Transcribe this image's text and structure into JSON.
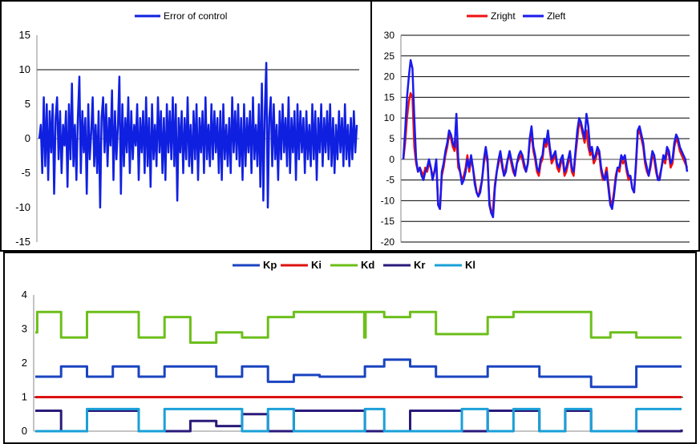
{
  "chart_data": [
    {
      "type": "line",
      "legend": [
        "Error of control"
      ],
      "legend_position": "top",
      "ylim": [
        -15,
        15
      ],
      "yticks": [
        "15",
        "10",
        "5",
        "0",
        "-5",
        "-10",
        "-15"
      ],
      "grid": "horizontal at 10",
      "colors": [
        "#1020e0"
      ],
      "series": [
        {
          "name": "Error of control",
          "values": [
            0,
            2,
            -5,
            6,
            -4,
            5,
            -6,
            4,
            -2,
            5,
            -8,
            3,
            6,
            -3,
            4,
            -5,
            2,
            -1,
            4,
            -7,
            5,
            -3,
            8,
            -4,
            2,
            -6,
            3,
            9,
            -5,
            4,
            -2,
            3,
            -8,
            5,
            -3,
            1,
            6,
            -4,
            2,
            -5,
            4,
            -10,
            3,
            6,
            -2,
            5,
            -4,
            3,
            -1,
            7,
            -6,
            4,
            -3,
            2,
            9,
            -8,
            5,
            -4,
            3,
            -2,
            6,
            -5,
            4,
            -3,
            2,
            -1,
            5,
            -6,
            3,
            -2,
            4,
            -5,
            6,
            -4,
            3,
            -7,
            5,
            -3,
            2,
            -4,
            6,
            -2,
            4,
            -5,
            3,
            -6,
            5,
            -2,
            4,
            -3,
            6,
            -4,
            5,
            -9,
            3,
            -2,
            4,
            -5,
            3,
            -3,
            6,
            -4,
            2,
            -5,
            4,
            -3,
            5,
            -6,
            3,
            -2,
            4,
            -5,
            6,
            -3,
            2,
            -4,
            5,
            -3,
            4,
            -2,
            3,
            -5,
            4,
            -6,
            5,
            -3,
            2,
            -4,
            3,
            -5,
            6,
            -2,
            4,
            -3,
            5,
            -4,
            3,
            -6,
            5,
            -4,
            3,
            -2,
            4,
            -5,
            6,
            -3,
            2,
            -4,
            5,
            -7,
            8,
            -9,
            4,
            11,
            -10,
            3,
            6,
            -4,
            5,
            -3,
            2,
            -6,
            4,
            -3,
            5,
            -2,
            3,
            -4,
            6,
            -5,
            3,
            -2,
            4,
            -6,
            5,
            -3,
            4,
            -2,
            3,
            -5,
            4,
            -3,
            2,
            -4,
            5,
            -3,
            4,
            -6,
            3,
            -2,
            5,
            -4,
            3,
            -2,
            4,
            -3,
            5,
            -4,
            3,
            -5,
            2,
            -3,
            4,
            -2,
            3,
            -4,
            5,
            -3,
            2,
            -4,
            3,
            -3,
            4,
            -2,
            2
          ]
        }
      ]
    },
    {
      "type": "line",
      "legend": [
        "Zright",
        "Zleft"
      ],
      "legend_position": "top",
      "ylim": [
        -20,
        30
      ],
      "yticks": [
        "30",
        "25",
        "20",
        "15",
        "10",
        "5",
        "0",
        "-5",
        "-10",
        "-15",
        "-20"
      ],
      "grid": "horizontal",
      "colors": [
        "#ee1111",
        "#1a1aee"
      ],
      "series": [
        {
          "name": "Zright",
          "values": [
            0,
            4,
            10,
            14,
            16,
            15,
            3,
            -1,
            -3,
            -2,
            -3,
            -4,
            -2,
            -3,
            -1,
            -2,
            -4,
            -3,
            -1,
            -11,
            -12,
            -4,
            -2,
            1,
            3,
            6,
            5,
            3,
            2,
            5,
            -2,
            -3,
            -5,
            -4,
            -2,
            1,
            -3,
            0,
            -2,
            -5,
            -8,
            -9,
            -7,
            -5,
            -1,
            2,
            -1,
            -10,
            -13,
            -12,
            -6,
            -3,
            -1,
            1,
            -2,
            -4,
            -2,
            0,
            1,
            -1,
            -3,
            -4,
            -1,
            0,
            1,
            0,
            -2,
            -3,
            -1,
            4,
            6,
            2,
            0,
            -3,
            -4,
            -1,
            0,
            4,
            3,
            5,
            2,
            -1,
            0,
            1,
            -2,
            -3,
            -1,
            0,
            -4,
            -3,
            -1,
            1,
            -3,
            -4,
            1,
            5,
            9,
            8,
            6,
            4,
            7,
            3,
            1,
            2,
            -1,
            0,
            2,
            1,
            -3,
            -5,
            -4,
            -2,
            -6,
            -10,
            -11,
            -8,
            -4,
            -2,
            -3,
            0,
            -1,
            0,
            -3,
            -5,
            -4,
            -7,
            -8,
            -2,
            6,
            7,
            5,
            3,
            -1,
            -3,
            -4,
            -2,
            1,
            0,
            -3,
            -5,
            -4,
            -2,
            0,
            -1,
            2,
            1,
            -2,
            -1,
            3,
            5,
            4,
            2,
            1,
            0,
            -1,
            -2
          ]
        },
        {
          "name": "Zleft",
          "values": [
            0,
            7,
            15,
            20,
            24,
            22,
            10,
            0,
            -3,
            -2,
            -4,
            -5,
            -3,
            -2,
            0,
            -2,
            -5,
            -3,
            0,
            -11,
            -12,
            -3,
            -1,
            2,
            4,
            7,
            6,
            4,
            3,
            11,
            0,
            -3,
            -6,
            -5,
            -3,
            0,
            -2,
            1,
            -2,
            -6,
            -8,
            -9,
            -8,
            -5,
            0,
            3,
            0,
            -11,
            -13,
            -14,
            -7,
            -3,
            0,
            2,
            -1,
            -4,
            -3,
            0,
            2,
            0,
            -2,
            -4,
            -1,
            1,
            2,
            1,
            -1,
            -3,
            -1,
            5,
            8,
            3,
            1,
            -2,
            -3,
            0,
            1,
            5,
            4,
            7,
            3,
            0,
            1,
            2,
            -1,
            -2,
            0,
            1,
            -3,
            -2,
            0,
            2,
            -2,
            -3,
            2,
            7,
            10,
            9,
            7,
            5,
            11,
            8,
            2,
            3,
            0,
            1,
            3,
            2,
            -2,
            -4,
            -5,
            -3,
            -7,
            -11,
            -12,
            -9,
            -5,
            -2,
            -2,
            1,
            0,
            1,
            -2,
            -4,
            -4,
            -7,
            -8,
            -1,
            7,
            8,
            6,
            4,
            0,
            -2,
            -4,
            -1,
            2,
            1,
            -2,
            -5,
            -5,
            -2,
            1,
            0,
            3,
            2,
            -1,
            0,
            4,
            6,
            5,
            3,
            2,
            1,
            0,
            -3
          ]
        }
      ]
    },
    {
      "type": "line",
      "legend": [
        "Kp",
        "Ki",
        "Kd",
        "Kr",
        "Kl"
      ],
      "legend_position": "top",
      "ylim": [
        0,
        4
      ],
      "yticks": [
        "4",
        "3",
        "2",
        "1",
        "0"
      ],
      "grid": "horizontal at 1",
      "colors": [
        "#1a44c0",
        "#dd1111",
        "#6cbf1a",
        "#2a1a7a",
        "#1aa0d8"
      ],
      "x_range": [
        0,
        100
      ],
      "series": [
        {
          "name": "Kp",
          "steps": [
            [
              0,
              1.6
            ],
            [
              4,
              1.9
            ],
            [
              8,
              1.6
            ],
            [
              12,
              1.9
            ],
            [
              16,
              1.6
            ],
            [
              20,
              1.9
            ],
            [
              28,
              1.6
            ],
            [
              32,
              1.9
            ],
            [
              36,
              1.45
            ],
            [
              40,
              1.65
            ],
            [
              44,
              1.6
            ],
            [
              51,
              1.9
            ],
            [
              54,
              2.1
            ],
            [
              58,
              1.9
            ],
            [
              62,
              1.6
            ],
            [
              70,
              1.9
            ],
            [
              78,
              1.6
            ],
            [
              86,
              1.3
            ],
            [
              93,
              1.9
            ],
            [
              100,
              1.9
            ]
          ]
        },
        {
          "name": "Ki",
          "steps": [
            [
              0,
              1
            ],
            [
              100,
              1
            ]
          ]
        },
        {
          "name": "Kd",
          "steps": [
            [
              0,
              2.9
            ],
            [
              0.3,
              3.5
            ],
            [
              4,
              2.75
            ],
            [
              8,
              3.5
            ],
            [
              16,
              2.75
            ],
            [
              20,
              3.35
            ],
            [
              24,
              2.6
            ],
            [
              28,
              2.9
            ],
            [
              32,
              2.75
            ],
            [
              36,
              3.35
            ],
            [
              40,
              3.5
            ],
            [
              50.9,
              2.75
            ],
            [
              51.1,
              3.5
            ],
            [
              54,
              3.35
            ],
            [
              58,
              3.5
            ],
            [
              62,
              2.85
            ],
            [
              70,
              3.35
            ],
            [
              74,
              3.5
            ],
            [
              86,
              2.75
            ],
            [
              89,
              2.9
            ],
            [
              93,
              2.75
            ],
            [
              100,
              2.75
            ]
          ]
        },
        {
          "name": "Kr",
          "steps": [
            [
              0,
              0.6
            ],
            [
              4,
              0
            ],
            [
              8,
              0.6
            ],
            [
              16,
              0
            ],
            [
              24,
              0.3
            ],
            [
              28,
              0.15
            ],
            [
              32,
              0.5
            ],
            [
              36,
              0
            ],
            [
              40,
              0.6
            ],
            [
              51,
              0
            ],
            [
              58,
              0.6
            ],
            [
              66,
              0
            ],
            [
              70,
              0.6
            ],
            [
              78,
              0
            ],
            [
              82,
              0.6
            ],
            [
              86,
              0
            ],
            [
              100,
              0.05
            ]
          ]
        },
        {
          "name": "Kl",
          "steps": [
            [
              0,
              0
            ],
            [
              8,
              0.65
            ],
            [
              16,
              0
            ],
            [
              20,
              0.65
            ],
            [
              32,
              0
            ],
            [
              36,
              0.65
            ],
            [
              40,
              0
            ],
            [
              51,
              0.65
            ],
            [
              54,
              0
            ],
            [
              66,
              0.65
            ],
            [
              70,
              0
            ],
            [
              74,
              0.65
            ],
            [
              78,
              0
            ],
            [
              82,
              0.65
            ],
            [
              86,
              0
            ],
            [
              93,
              0.65
            ],
            [
              100,
              0.65
            ]
          ]
        }
      ]
    }
  ]
}
